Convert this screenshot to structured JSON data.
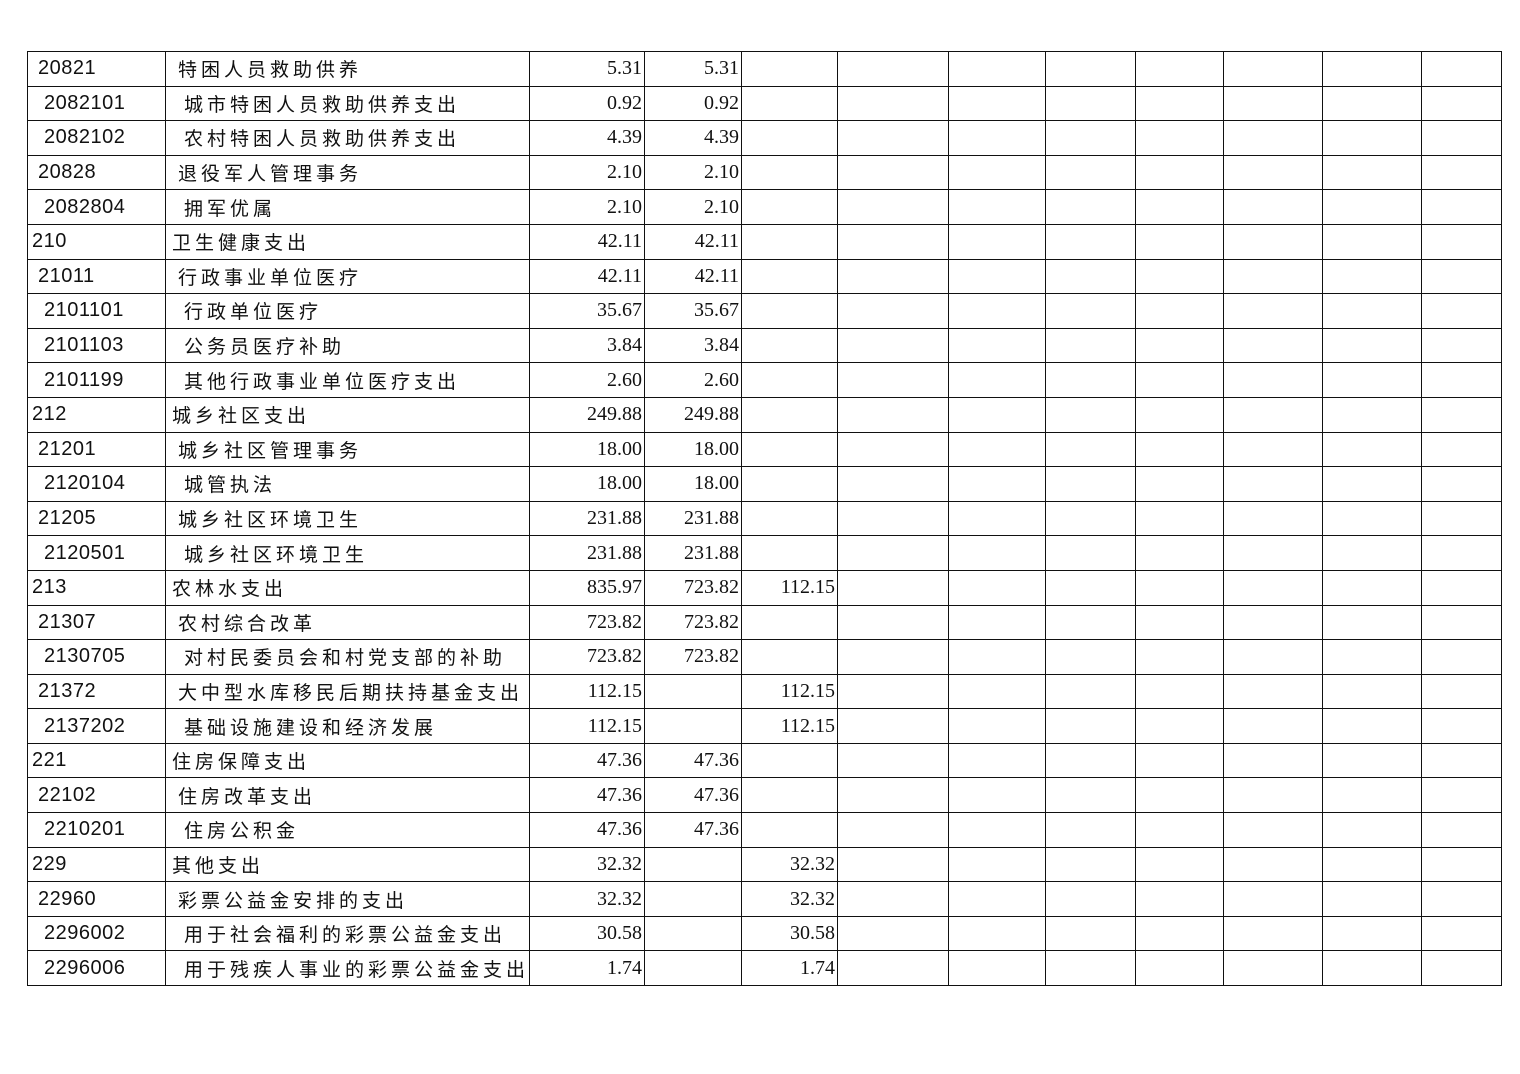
{
  "rows": [
    {
      "code": "20821",
      "name": "特困人员救助供养",
      "level": 2,
      "total": "5.31",
      "basic": "5.31",
      "project": ""
    },
    {
      "code": "2082101",
      "name": "城市特困人员救助供养支出",
      "level": 3,
      "total": "0.92",
      "basic": "0.92",
      "project": ""
    },
    {
      "code": "2082102",
      "name": "农村特困人员救助供养支出",
      "level": 3,
      "total": "4.39",
      "basic": "4.39",
      "project": ""
    },
    {
      "code": "20828",
      "name": "退役军人管理事务",
      "level": 2,
      "total": "2.10",
      "basic": "2.10",
      "project": ""
    },
    {
      "code": "2082804",
      "name": "拥军优属",
      "level": 3,
      "total": "2.10",
      "basic": "2.10",
      "project": ""
    },
    {
      "code": "210",
      "name": "卫生健康支出",
      "level": 1,
      "total": "42.11",
      "basic": "42.11",
      "project": ""
    },
    {
      "code": "21011",
      "name": "行政事业单位医疗",
      "level": 2,
      "total": "42.11",
      "basic": "42.11",
      "project": ""
    },
    {
      "code": "2101101",
      "name": "行政单位医疗",
      "level": 3,
      "total": "35.67",
      "basic": "35.67",
      "project": ""
    },
    {
      "code": "2101103",
      "name": "公务员医疗补助",
      "level": 3,
      "total": "3.84",
      "basic": "3.84",
      "project": ""
    },
    {
      "code": "2101199",
      "name": "其他行政事业单位医疗支出",
      "level": 3,
      "total": "2.60",
      "basic": "2.60",
      "project": ""
    },
    {
      "code": "212",
      "name": "城乡社区支出",
      "level": 1,
      "total": "249.88",
      "basic": "249.88",
      "project": ""
    },
    {
      "code": "21201",
      "name": "城乡社区管理事务",
      "level": 2,
      "total": "18.00",
      "basic": "18.00",
      "project": ""
    },
    {
      "code": "2120104",
      "name": "城管执法",
      "level": 3,
      "total": "18.00",
      "basic": "18.00",
      "project": ""
    },
    {
      "code": "21205",
      "name": "城乡社区环境卫生",
      "level": 2,
      "total": "231.88",
      "basic": "231.88",
      "project": ""
    },
    {
      "code": "2120501",
      "name": "城乡社区环境卫生",
      "level": 3,
      "total": "231.88",
      "basic": "231.88",
      "project": ""
    },
    {
      "code": "213",
      "name": "农林水支出",
      "level": 1,
      "total": "835.97",
      "basic": "723.82",
      "project": "112.15"
    },
    {
      "code": "21307",
      "name": "农村综合改革",
      "level": 2,
      "total": "723.82",
      "basic": "723.82",
      "project": ""
    },
    {
      "code": "2130705",
      "name": "对村民委员会和村党支部的补助",
      "level": 3,
      "total": "723.82",
      "basic": "723.82",
      "project": ""
    },
    {
      "code": "21372",
      "name": "大中型水库移民后期扶持基金支出",
      "level": 2,
      "total": "112.15",
      "basic": "",
      "project": "112.15"
    },
    {
      "code": "2137202",
      "name": "基础设施建设和经济发展",
      "level": 3,
      "total": "112.15",
      "basic": "",
      "project": "112.15"
    },
    {
      "code": "221",
      "name": "住房保障支出",
      "level": 1,
      "total": "47.36",
      "basic": "47.36",
      "project": ""
    },
    {
      "code": "22102",
      "name": "住房改革支出",
      "level": 2,
      "total": "47.36",
      "basic": "47.36",
      "project": ""
    },
    {
      "code": "2210201",
      "name": "住房公积金",
      "level": 3,
      "total": "47.36",
      "basic": "47.36",
      "project": ""
    },
    {
      "code": "229",
      "name": "其他支出",
      "level": 1,
      "total": "32.32",
      "basic": "",
      "project": "32.32"
    },
    {
      "code": "22960",
      "name": "彩票公益金安排的支出",
      "level": 2,
      "total": "32.32",
      "basic": "",
      "project": "32.32"
    },
    {
      "code": "2296002",
      "name": "用于社会福利的彩票公益金支出",
      "level": 3,
      "total": "30.58",
      "basic": "",
      "project": "30.58"
    },
    {
      "code": "2296006",
      "name": "用于残疾人事业的彩票公益金支出",
      "level": 3,
      "total": "1.74",
      "basic": "",
      "project": "1.74"
    }
  ]
}
